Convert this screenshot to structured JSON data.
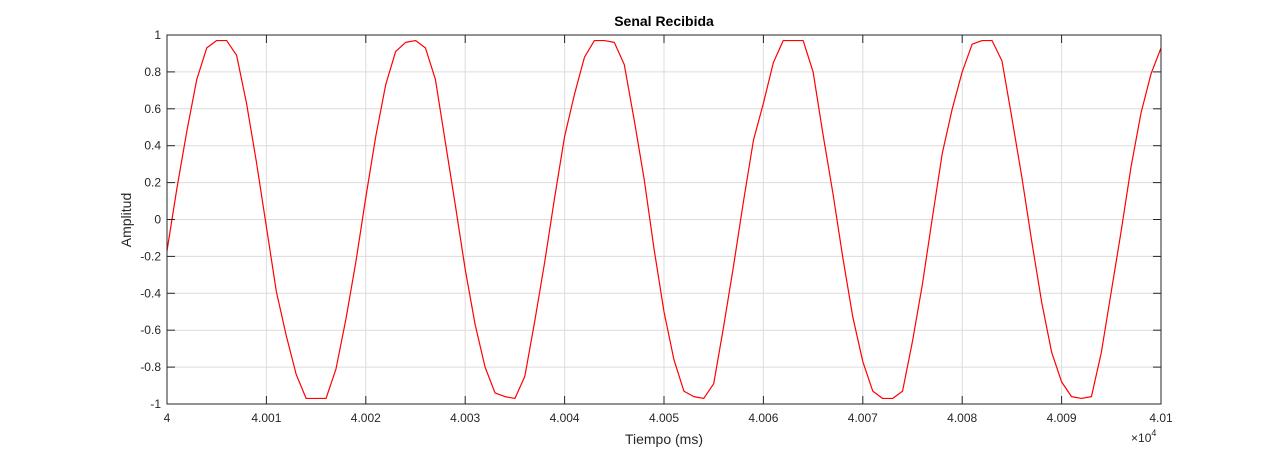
{
  "chart_data": {
    "type": "line",
    "title": "Senal Recibida",
    "xlabel": "Tiempo (ms)",
    "ylabel": "Amplitud",
    "x_exponent_base": "10",
    "x_exponent_power": "4",
    "x_tick_values": [
      4.0,
      4.001,
      4.002,
      4.003,
      4.004,
      4.005,
      4.006,
      4.007,
      4.008,
      4.009,
      4.01
    ],
    "x_tick_labels": [
      "4",
      "4.001",
      "4.002",
      "4.003",
      "4.004",
      "4.005",
      "4.006",
      "4.007",
      "4.008",
      "4.009",
      "4.01"
    ],
    "y_tick_values": [
      -1,
      -0.8,
      -0.6,
      -0.4,
      -0.2,
      0,
      0.2,
      0.4,
      0.6,
      0.8,
      1
    ],
    "y_tick_labels": [
      "-1",
      "-0.8",
      "-0.6",
      "-0.4",
      "-0.2",
      "0",
      "0.2",
      "0.4",
      "0.6",
      "0.8",
      "1"
    ],
    "xlim": [
      40000,
      40100
    ],
    "ylim": [
      -1,
      1
    ],
    "grid": true,
    "line_color": "#ff0000",
    "series": [
      {
        "x": [
          40000,
          40001,
          40002,
          40003,
          40004,
          40005,
          40006,
          40007,
          40008,
          40009,
          40010,
          40011,
          40012,
          40013,
          40014,
          40015,
          40016,
          40017,
          40018,
          40019,
          40020,
          40021,
          40022,
          40023,
          40024,
          40025,
          40026,
          40027,
          40028,
          40029,
          40030,
          40031,
          40032,
          40033,
          40034,
          40035,
          40036,
          40037,
          40038,
          40039,
          40040,
          40041,
          40042,
          40043,
          40044,
          40045,
          40046,
          40047,
          40048,
          40049,
          40050,
          40051,
          40052,
          40053,
          40054,
          40055,
          40056,
          40057,
          40058,
          40059,
          40060,
          40061,
          40062,
          40063,
          40064,
          40065,
          40066,
          40067,
          40068,
          40069,
          40070,
          40071,
          40072,
          40073,
          40074,
          40075,
          40076,
          40077,
          40078,
          40079,
          40080,
          40081,
          40082,
          40083,
          40084,
          40085,
          40086,
          40087,
          40088,
          40089,
          40090,
          40091,
          40092,
          40093,
          40094,
          40095,
          40096,
          40097,
          40098,
          40099,
          40100
        ],
        "y": [
          -0.17,
          0.17,
          0.48,
          0.76,
          0.93,
          0.97,
          0.97,
          0.89,
          0.63,
          0.31,
          -0.04,
          -0.39,
          -0.63,
          -0.84,
          -0.97,
          -0.97,
          -0.97,
          -0.81,
          -0.54,
          -0.23,
          0.12,
          0.45,
          0.73,
          0.91,
          0.96,
          0.97,
          0.93,
          0.76,
          0.42,
          0.08,
          -0.27,
          -0.57,
          -0.8,
          -0.94,
          -0.96,
          -0.97,
          -0.85,
          -0.55,
          -0.23,
          0.12,
          0.45,
          0.68,
          0.88,
          0.97,
          0.97,
          0.96,
          0.84,
          0.54,
          0.22,
          -0.16,
          -0.5,
          -0.76,
          -0.93,
          -0.96,
          -0.97,
          -0.89,
          -0.58,
          -0.25,
          0.1,
          0.43,
          0.63,
          0.85,
          0.97,
          0.97,
          0.97,
          0.8,
          0.46,
          0.14,
          -0.21,
          -0.53,
          -0.77,
          -0.93,
          -0.97,
          -0.97,
          -0.93,
          -0.66,
          -0.35,
          0.01,
          0.36,
          0.6,
          0.8,
          0.95,
          0.97,
          0.97,
          0.86,
          0.55,
          0.23,
          -0.12,
          -0.45,
          -0.72,
          -0.88,
          -0.96,
          -0.97,
          -0.96,
          -0.72,
          -0.39,
          -0.06,
          0.29,
          0.58,
          0.79,
          0.93
        ]
      }
    ]
  }
}
